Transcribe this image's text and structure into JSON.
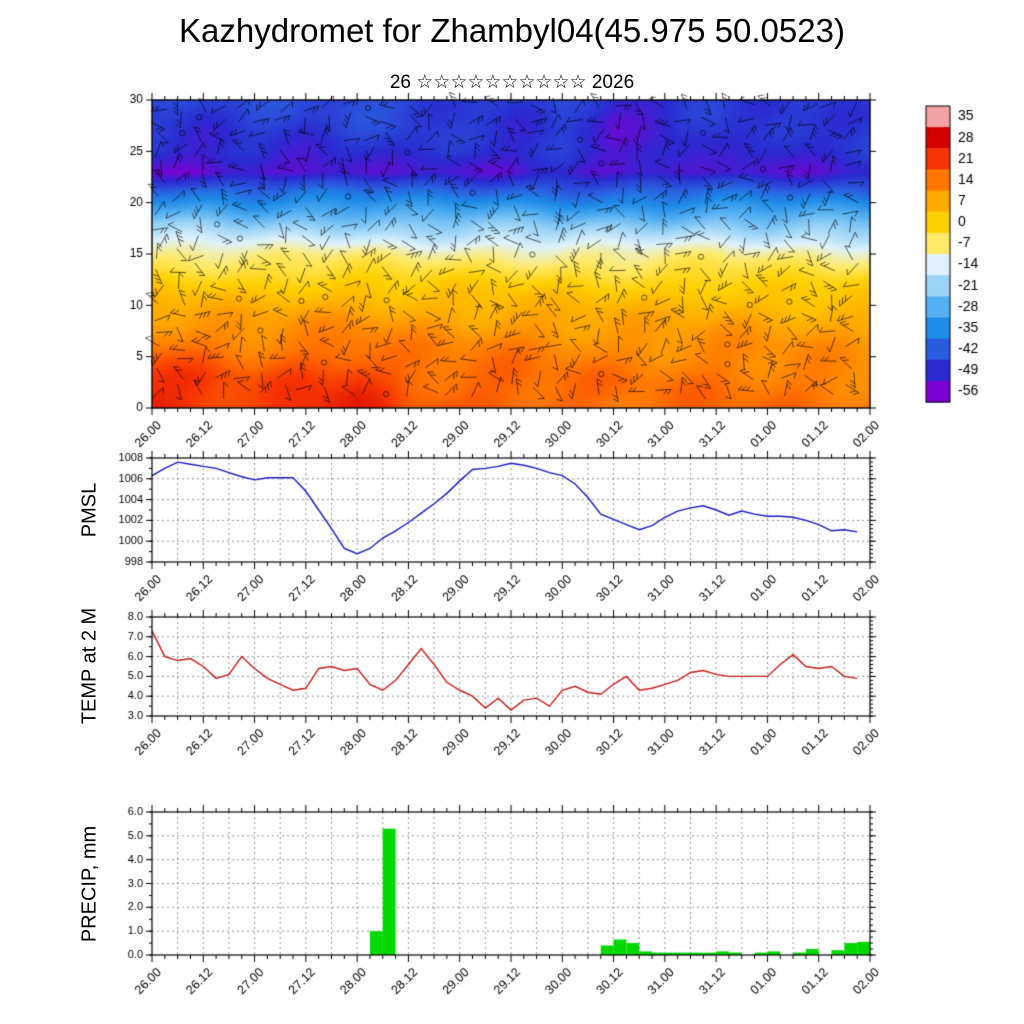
{
  "title": "Kazhydromet for Zhambyl04(45.975 50.0523)",
  "subtitle": "26 ☆☆☆☆☆☆☆☆☆☆ 2026",
  "time_axis": {
    "tick_labels": [
      "26.00",
      "26.12",
      "27.00",
      "27.12",
      "28.00",
      "28.12",
      "29.00",
      "29.12",
      "30.00",
      "30.12",
      "31.00",
      "31.12",
      "01.00",
      "01.12",
      "02.00"
    ],
    "hours_between_ticks": 12,
    "total_hours": 168,
    "sample_step_hours": 3
  },
  "chart_data": [
    {
      "id": "cross_section",
      "type": "heatmap",
      "ylabel": "",
      "ylim": [
        0,
        30
      ],
      "yticks": [
        0,
        5,
        10,
        15,
        20,
        25,
        30
      ],
      "overlay": "wind-barbs",
      "heights": [
        0,
        3,
        6,
        9,
        12,
        15,
        18,
        21,
        23,
        25,
        28,
        30
      ],
      "grid": [
        [
          23,
          21,
          18,
          22,
          23,
          17,
          16,
          17,
          16,
          15,
          15,
          16,
          15,
          15,
          14
        ],
        [
          20,
          19,
          16,
          19,
          20,
          15,
          15,
          15,
          14,
          14,
          13,
          14,
          13,
          13,
          12
        ],
        [
          14,
          13,
          12,
          13,
          14,
          12,
          11,
          12,
          11,
          10,
          10,
          11,
          10,
          10,
          9
        ],
        [
          8,
          8,
          7,
          8,
          8,
          7,
          6,
          7,
          6,
          6,
          5,
          6,
          5,
          5,
          5
        ],
        [
          1,
          1,
          0,
          1,
          1,
          0,
          0,
          0,
          -1,
          -1,
          -1,
          0,
          -1,
          -1,
          -2
        ],
        [
          -8,
          -8,
          -9,
          -8,
          -8,
          -9,
          -9,
          -9,
          -10,
          -10,
          -10,
          -9,
          -10,
          -10,
          -11
        ],
        [
          -22,
          -22,
          -23,
          -22,
          -22,
          -23,
          -23,
          -23,
          -24,
          -24,
          -24,
          -23,
          -24,
          -24,
          -25
        ],
        [
          -38,
          -38,
          -39,
          -38,
          -38,
          -39,
          -39,
          -39,
          -40,
          -40,
          -40,
          -39,
          -40,
          -40,
          -41
        ],
        [
          -54,
          -55,
          -52,
          -53,
          -52,
          -50,
          -51,
          -52,
          -50,
          -53,
          -52,
          -50,
          -52,
          -51,
          -50
        ],
        [
          -49,
          -50,
          -48,
          -49,
          -48,
          -47,
          -48,
          -49,
          -47,
          -50,
          -49,
          -47,
          -49,
          -48,
          -47
        ],
        [
          -47,
          -48,
          -46,
          -47,
          -45,
          -46,
          -47,
          -48,
          -45,
          -52,
          -50,
          -46,
          -48,
          -47,
          -46
        ],
        [
          -46,
          -47,
          -45,
          -46,
          -44,
          -45,
          -46,
          -47,
          -44,
          -51,
          -49,
          -45,
          -47,
          -46,
          -45
        ]
      ],
      "colorbar": {
        "levels": [
          35,
          28,
          21,
          14,
          7,
          0,
          -7,
          -14,
          -21,
          -28,
          -35,
          -42,
          -49,
          -56
        ],
        "colors": [
          "#f2a2a2",
          "#d40000",
          "#f63300",
          "#ff7700",
          "#ffaa00",
          "#ffd000",
          "#ffe966",
          "#dff2fb",
          "#9bd4f7",
          "#55b0f2",
          "#1e8ce8",
          "#2a5ce0",
          "#2a2ad0",
          "#7a00d4"
        ]
      }
    },
    {
      "id": "pmsl",
      "type": "line",
      "ylabel": "PMSL",
      "ylim": [
        998,
        1008
      ],
      "yticks": [
        998,
        1000,
        1002,
        1004,
        1006,
        1008
      ],
      "line_color": "#1a1acc",
      "values": [
        1006.3,
        1007.0,
        1007.6,
        1007.4,
        1007.2,
        1007.0,
        1006.6,
        1006.2,
        1005.9,
        1006.1,
        1006.1,
        1006.1,
        1004.8,
        1003.0,
        1001.2,
        999.3,
        998.8,
        999.3,
        1000.3,
        1001.0,
        1001.8,
        1002.7,
        1003.6,
        1004.6,
        1005.8,
        1006.9,
        1007.0,
        1007.2,
        1007.5,
        1007.3,
        1007.0,
        1006.6,
        1006.3,
        1005.5,
        1004.2,
        1002.6,
        1002.1,
        1001.6,
        1001.1,
        1001.5,
        1002.3,
        1002.9,
        1003.2,
        1003.4,
        1003.0,
        1002.5,
        1002.9,
        1002.6,
        1002.4,
        1002.4,
        1002.3,
        1002.0,
        1001.6,
        1001.0,
        1001.1,
        1000.9
      ]
    },
    {
      "id": "temp2m",
      "type": "line",
      "ylabel": "TEMP at 2 M",
      "ylim": [
        3,
        8
      ],
      "yticks": [
        3,
        4,
        5,
        6,
        7,
        8
      ],
      "ytick_decimals": 1,
      "line_color": "#cc1a1a",
      "values": [
        7.3,
        6.0,
        5.8,
        5.9,
        5.5,
        4.9,
        5.1,
        6.0,
        5.4,
        4.9,
        4.6,
        4.3,
        4.4,
        5.4,
        5.5,
        5.3,
        5.4,
        4.6,
        4.3,
        4.8,
        5.6,
        6.4,
        5.6,
        4.7,
        4.3,
        4.0,
        3.4,
        3.9,
        3.3,
        3.8,
        3.9,
        3.5,
        4.3,
        4.5,
        4.2,
        4.1,
        4.6,
        5.0,
        4.3,
        4.4,
        4.6,
        4.8,
        5.2,
        5.3,
        5.1,
        5.0,
        5.0,
        5.0,
        5.0,
        5.6,
        6.1,
        5.5,
        5.4,
        5.5,
        5.0,
        4.9
      ]
    },
    {
      "id": "precip",
      "type": "bar",
      "ylabel": "PRECIP, mm",
      "ylim": [
        0,
        6
      ],
      "yticks": [
        0,
        1,
        2,
        3,
        4,
        5,
        6
      ],
      "ytick_decimals": 1,
      "bar_color": "#00d800",
      "values": [
        0,
        0,
        0,
        0,
        0,
        0,
        0,
        0,
        0,
        0,
        0,
        0,
        0,
        0,
        0,
        0,
        0,
        1.0,
        5.3,
        0,
        0,
        0,
        0,
        0,
        0,
        0,
        0,
        0,
        0,
        0,
        0,
        0,
        0,
        0,
        0,
        0.4,
        0.65,
        0.5,
        0.15,
        0.1,
        0.1,
        0.1,
        0.1,
        0.1,
        0.15,
        0.1,
        0,
        0.1,
        0.15,
        0,
        0.1,
        0.25,
        0,
        0.2,
        0.5,
        0.55
      ]
    }
  ]
}
